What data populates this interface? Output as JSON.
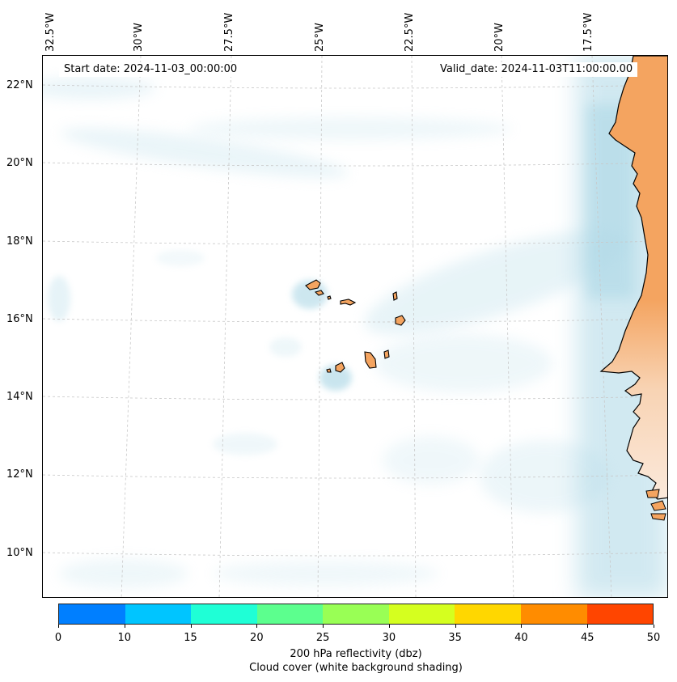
{
  "map": {
    "start_date": "Start date: 2024-11-03_00:00:00",
    "valid_date": "Valid_date: 2024-11-03T11:00:00.00",
    "longitude_labels": [
      "32.5°W",
      "30°W",
      "27.5°W",
      "25°W",
      "22.5°W",
      "20°W",
      "17.5°W"
    ],
    "latitude_labels": [
      "22°N",
      "20°N",
      "18°N",
      "16°N",
      "14°N",
      "12°N",
      "10°N"
    ],
    "colors": {
      "cloud": "#add8e6",
      "land": "#f4a460",
      "coastline": "#000000",
      "gridline": "#c8c8c8"
    }
  },
  "colorbar": {
    "ticks": [
      "0",
      "10",
      "15",
      "20",
      "25",
      "30",
      "35",
      "40",
      "45",
      "50"
    ],
    "segment_colors": [
      "#007fff",
      "#00c5ff",
      "#1fffd6",
      "#5cff8e",
      "#99ff55",
      "#d5ff1f",
      "#ffd700",
      "#ff8c00",
      "#ff4500"
    ],
    "title": "200 hPa reflectivity (dbz)",
    "subtitle": "Cloud cover (white background shading)"
  }
}
